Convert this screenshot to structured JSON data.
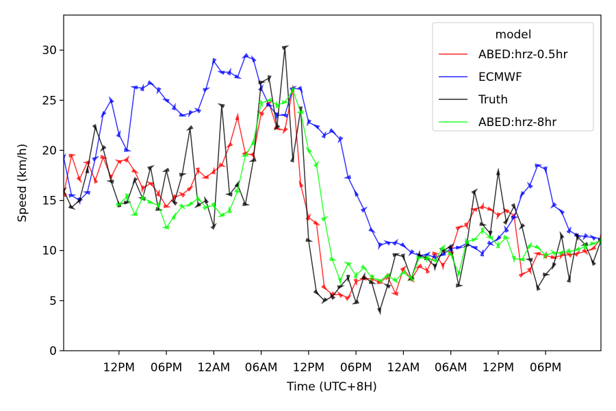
{
  "chart_data": {
    "type": "line",
    "title": "",
    "xlabel": "Time (UTC+8H)",
    "ylabel": "Speed (km/h)",
    "x_tick_labels": [
      "12PM",
      "06PM",
      "12AM",
      "06AM",
      "12PM",
      "06PM",
      "12AM",
      "06AM",
      "12PM",
      "06PM"
    ],
    "x_tick_hours": [
      4,
      10,
      16,
      22,
      28,
      34,
      40,
      46,
      52,
      58
    ],
    "x_range_hours": [
      -3,
      65
    ],
    "y_ticks": [
      0,
      5,
      10,
      15,
      20,
      25,
      30
    ],
    "ylim": [
      0,
      33.5
    ],
    "grid": false,
    "legend": {
      "title": "model",
      "placement": "top-right"
    },
    "series": [
      {
        "name": "ABED:hrz-0.5hr",
        "color": "#ff0000",
        "values": [
          [
            -3,
            15.6
          ],
          [
            -2,
            19.5
          ],
          [
            -1,
            17.1
          ],
          [
            0,
            18.8
          ],
          [
            1,
            17.0
          ],
          [
            2,
            19.3
          ],
          [
            3,
            17.3
          ],
          [
            4,
            18.9
          ],
          [
            5,
            19.1
          ],
          [
            6,
            17.9
          ],
          [
            7,
            16.2
          ],
          [
            8,
            16.7
          ],
          [
            9,
            15.7
          ],
          [
            10,
            14.4
          ],
          [
            11,
            15.3
          ],
          [
            12,
            15.6
          ],
          [
            13,
            16.2
          ],
          [
            14,
            18.0
          ],
          [
            15,
            17.3
          ],
          [
            16,
            17.9
          ],
          [
            17,
            18.5
          ],
          [
            18,
            20.5
          ],
          [
            19,
            23.3
          ],
          [
            20,
            19.7
          ],
          [
            21,
            19.5
          ],
          [
            22,
            23.7
          ],
          [
            23,
            24.7
          ],
          [
            24,
            22.2
          ],
          [
            25,
            22.0
          ],
          [
            26,
            26.1
          ],
          [
            27,
            16.6
          ],
          [
            28,
            13.3
          ],
          [
            29,
            12.7
          ],
          [
            30,
            6.3
          ],
          [
            31,
            5.6
          ],
          [
            32,
            5.6
          ],
          [
            33,
            5.3
          ],
          [
            34,
            6.9
          ],
          [
            35,
            7.2
          ],
          [
            36,
            7.2
          ],
          [
            37,
            6.8
          ],
          [
            38,
            7.4
          ],
          [
            39,
            5.7
          ],
          [
            40,
            8.2
          ],
          [
            41,
            7.1
          ],
          [
            42,
            8.4
          ],
          [
            43,
            8.0
          ],
          [
            44,
            9.7
          ],
          [
            45,
            8.5
          ],
          [
            46,
            9.8
          ],
          [
            47,
            12.3
          ],
          [
            48,
            12.5
          ],
          [
            49,
            14.1
          ],
          [
            50,
            14.4
          ],
          [
            51,
            14.1
          ],
          [
            52,
            13.5
          ],
          [
            53,
            14.0
          ],
          [
            54,
            13.5
          ],
          [
            55,
            7.6
          ],
          [
            56,
            8.0
          ],
          [
            57,
            9.7
          ],
          [
            58,
            9.5
          ],
          [
            59,
            9.3
          ],
          [
            60,
            9.5
          ],
          [
            61,
            9.6
          ],
          [
            62,
            9.7
          ],
          [
            63,
            9.9
          ],
          [
            64,
            10.2
          ],
          [
            65,
            11.2
          ]
        ]
      },
      {
        "name": "ECMWF",
        "color": "#0000ff",
        "values": [
          [
            -3,
            19.3
          ],
          [
            -2,
            15.5
          ],
          [
            -1,
            15.0
          ],
          [
            0,
            15.8
          ],
          [
            1,
            19.2
          ],
          [
            2,
            23.6
          ],
          [
            3,
            25.0
          ],
          [
            4,
            21.6
          ],
          [
            5,
            20.0
          ],
          [
            6,
            26.3
          ],
          [
            7,
            26.2
          ],
          [
            8,
            26.7
          ],
          [
            9,
            26.0
          ],
          [
            10,
            25.0
          ],
          [
            11,
            24.3
          ],
          [
            12,
            23.5
          ],
          [
            13,
            23.7
          ],
          [
            14,
            24.0
          ],
          [
            15,
            26.1
          ],
          [
            16,
            28.9
          ],
          [
            17,
            27.8
          ],
          [
            18,
            27.8
          ],
          [
            19,
            27.3
          ],
          [
            20,
            29.4
          ],
          [
            21,
            29.1
          ],
          [
            22,
            26.2
          ],
          [
            23,
            24.5
          ],
          [
            24,
            23.5
          ],
          [
            25,
            23.5
          ],
          [
            26,
            26.2
          ],
          [
            27,
            26.1
          ],
          [
            28,
            22.8
          ],
          [
            29,
            22.4
          ],
          [
            30,
            21.5
          ],
          [
            31,
            21.9
          ],
          [
            32,
            21.1
          ],
          [
            33,
            17.3
          ],
          [
            34,
            15.7
          ],
          [
            35,
            14.1
          ],
          [
            36,
            12.0
          ],
          [
            37,
            10.5
          ],
          [
            38,
            10.8
          ],
          [
            39,
            10.8
          ],
          [
            40,
            10.5
          ],
          [
            41,
            9.8
          ],
          [
            42,
            9.5
          ],
          [
            43,
            9.6
          ],
          [
            44,
            9.3
          ],
          [
            45,
            9.6
          ],
          [
            46,
            10.2
          ],
          [
            47,
            10.3
          ],
          [
            48,
            10.7
          ],
          [
            49,
            10.3
          ],
          [
            50,
            9.7
          ],
          [
            51,
            10.7
          ],
          [
            52,
            11.2
          ],
          [
            53,
            12.1
          ],
          [
            54,
            13.3
          ],
          [
            55,
            15.6
          ],
          [
            56,
            16.5
          ],
          [
            57,
            18.5
          ],
          [
            58,
            18.1
          ],
          [
            59,
            14.5
          ],
          [
            60,
            13.9
          ],
          [
            61,
            12.0
          ],
          [
            62,
            11.5
          ],
          [
            63,
            11.4
          ],
          [
            64,
            11.3
          ],
          [
            65,
            11.2
          ]
        ]
      },
      {
        "name": "Truth",
        "color": "#000000",
        "values": [
          [
            -3,
            16.0
          ],
          [
            -2,
            14.3
          ],
          [
            -1,
            15.0
          ],
          [
            0,
            18.0
          ],
          [
            1,
            22.3
          ],
          [
            2,
            20.2
          ],
          [
            3,
            16.9
          ],
          [
            4,
            14.6
          ],
          [
            5,
            14.8
          ],
          [
            6,
            17.0
          ],
          [
            7,
            15.2
          ],
          [
            8,
            18.3
          ],
          [
            9,
            14.1
          ],
          [
            10,
            18.0
          ],
          [
            11,
            14.8
          ],
          [
            12,
            17.6
          ],
          [
            13,
            22.2
          ],
          [
            14,
            14.5
          ],
          [
            15,
            15.0
          ],
          [
            16,
            12.4
          ],
          [
            17,
            24.5
          ],
          [
            18,
            15.6
          ],
          [
            19,
            16.6
          ],
          [
            20,
            14.6
          ],
          [
            21,
            19.0
          ],
          [
            22,
            26.8
          ],
          [
            23,
            27.2
          ],
          [
            24,
            22.3
          ],
          [
            25,
            30.3
          ],
          [
            26,
            19.1
          ],
          [
            27,
            24.1
          ],
          [
            28,
            11.0
          ],
          [
            29,
            5.8
          ],
          [
            30,
            5.0
          ],
          [
            31,
            5.4
          ],
          [
            32,
            6.4
          ],
          [
            33,
            7.3
          ],
          [
            34,
            4.8
          ],
          [
            35,
            7.4
          ],
          [
            36,
            6.8
          ],
          [
            37,
            4.0
          ],
          [
            38,
            6.5
          ],
          [
            39,
            9.6
          ],
          [
            40,
            9.4
          ],
          [
            41,
            7.2
          ],
          [
            42,
            9.6
          ],
          [
            43,
            9.2
          ],
          [
            44,
            8.4
          ],
          [
            45,
            10.0
          ],
          [
            46,
            10.4
          ],
          [
            47,
            6.5
          ],
          [
            48,
            10.5
          ],
          [
            49,
            15.9
          ],
          [
            50,
            12.6
          ],
          [
            51,
            11.7
          ],
          [
            52,
            17.8
          ],
          [
            53,
            12.9
          ],
          [
            54,
            14.4
          ],
          [
            55,
            12.4
          ],
          [
            56,
            9.1
          ],
          [
            57,
            6.3
          ],
          [
            58,
            7.6
          ],
          [
            59,
            8.5
          ],
          [
            60,
            11.5
          ],
          [
            61,
            7.1
          ],
          [
            62,
            11.4
          ],
          [
            63,
            10.6
          ],
          [
            64,
            8.8
          ],
          [
            65,
            11.0
          ]
        ]
      },
      {
        "name": "ABED:hrz-8hr",
        "color": "#00ff00",
        "values": [
          [
            4,
            14.6
          ],
          [
            5,
            15.4
          ],
          [
            6,
            13.6
          ],
          [
            7,
            15.3
          ],
          [
            8,
            14.8
          ],
          [
            9,
            14.5
          ],
          [
            10,
            12.3
          ],
          [
            11,
            13.4
          ],
          [
            12,
            14.4
          ],
          [
            13,
            14.6
          ],
          [
            14,
            15.2
          ],
          [
            15,
            14.3
          ],
          [
            16,
            14.5
          ],
          [
            17,
            13.5
          ],
          [
            18,
            14.0
          ],
          [
            19,
            15.9
          ],
          [
            20,
            19.5
          ],
          [
            21,
            20.8
          ],
          [
            22,
            24.7
          ],
          [
            23,
            25.0
          ],
          [
            24,
            24.5
          ],
          [
            25,
            24.8
          ],
          [
            26,
            26.0
          ],
          [
            27,
            23.8
          ],
          [
            28,
            20.0
          ],
          [
            29,
            18.6
          ],
          [
            30,
            13.2
          ],
          [
            31,
            9.1
          ],
          [
            32,
            7.0
          ],
          [
            33,
            8.7
          ],
          [
            34,
            7.5
          ],
          [
            35,
            8.3
          ],
          [
            36,
            7.3
          ],
          [
            37,
            7.0
          ],
          [
            38,
            7.5
          ],
          [
            39,
            7.0
          ],
          [
            40,
            7.8
          ],
          [
            41,
            7.2
          ],
          [
            42,
            9.3
          ],
          [
            43,
            9.2
          ],
          [
            44,
            9.0
          ],
          [
            45,
            10.3
          ],
          [
            46,
            9.6
          ],
          [
            47,
            7.7
          ],
          [
            48,
            10.9
          ],
          [
            49,
            11.1
          ],
          [
            50,
            12.0
          ],
          [
            51,
            11.3
          ],
          [
            52,
            10.5
          ],
          [
            53,
            11.3
          ],
          [
            54,
            9.2
          ],
          [
            55,
            9.1
          ],
          [
            56,
            10.5
          ],
          [
            57,
            10.3
          ],
          [
            58,
            9.5
          ],
          [
            59,
            9.8
          ],
          [
            60,
            9.8
          ],
          [
            61,
            9.9
          ],
          [
            62,
            10.1
          ],
          [
            63,
            10.4
          ],
          [
            64,
            10.7
          ],
          [
            65,
            11.0
          ]
        ]
      }
    ]
  }
}
